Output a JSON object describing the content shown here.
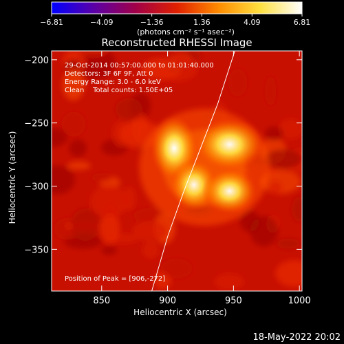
{
  "colorbar": {
    "ticks": [
      "-6.81",
      "-4.09",
      "-1.36",
      "1.36",
      "4.09",
      "6.81"
    ],
    "units": "(photons cm⁻² s⁻¹ asec⁻²)",
    "range": [
      -6.81,
      6.81
    ],
    "colors": [
      "#0000ff",
      "#5a00a8",
      "#a0004a",
      "#e02000",
      "#ff8c00",
      "#ffe040",
      "#ffffff"
    ]
  },
  "footer": {
    "timestamp": "18‑May‑2022 20:02"
  },
  "chart_data": {
    "type": "heatmap",
    "title": "Reconstructed RHESSI Image",
    "xlabel": "Heliocentric X (arcsec)",
    "ylabel": "Heliocentric Y (arcsec)",
    "xlim": [
      812,
      1002
    ],
    "ylim": [
      -383,
      -193
    ],
    "xticks": [
      850,
      900,
      950,
      1000
    ],
    "yticks": [
      -200,
      -250,
      -300,
      -350
    ],
    "annotations": [
      "29‑Oct‑2014 00:57:00.000 to 01:01:40.000",
      "Detectors: 3F 6F 9F, Att 0",
      "Energy Range: 3.0 ‑ 6.0 keV",
      "Clean    Total counts: 1.50E+05"
    ],
    "peak_label": "Position of Peak = [906,‑272]",
    "peak": [
      906,
      -272
    ],
    "background_level": 2.4,
    "sources": [
      {
        "x": 905,
        "y": -270,
        "peak": 6.81,
        "sx": 7,
        "sy": 10
      },
      {
        "x": 947,
        "y": -267,
        "peak": 5.9,
        "sx": 10,
        "sy": 8
      },
      {
        "x": 920,
        "y": -299,
        "peak": 5.5,
        "sx": 7,
        "sy": 8
      },
      {
        "x": 947,
        "y": -304,
        "peak": 5.7,
        "sx": 8,
        "sy": 7
      }
    ],
    "limb": [
      [
        888,
        -383
      ],
      [
        900,
        -340
      ],
      [
        912,
        -305
      ],
      [
        925,
        -270
      ],
      [
        938,
        -235
      ],
      [
        951,
        -193
      ]
    ]
  }
}
